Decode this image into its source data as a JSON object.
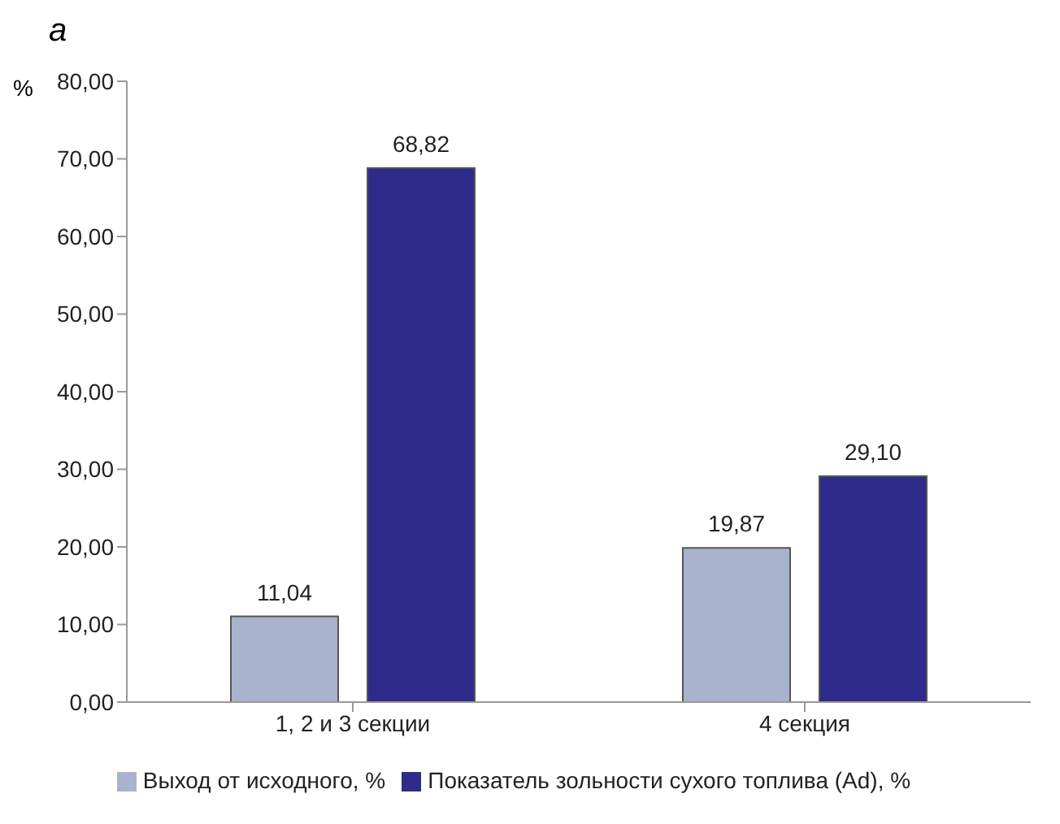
{
  "chart_data": {
    "type": "bar",
    "title": "а",
    "ylabel": "%",
    "categories": [
      "1, 2 и 3  секции",
      "4 секция"
    ],
    "series": [
      {
        "name": "Выход от исходного, %",
        "color": "#a9b3cd",
        "values": [
          11.04,
          19.87
        ],
        "value_labels": [
          "11,04",
          "19,87"
        ]
      },
      {
        "name": "Показатель зольности сухого топлива (Ad), %",
        "color": "#2e2b8a",
        "values": [
          68.82,
          29.1
        ],
        "value_labels": [
          "68,82",
          "29,10"
        ]
      }
    ],
    "ylim": [
      0,
      80
    ],
    "yticks": [
      {
        "value": 0,
        "label": "0,00"
      },
      {
        "value": 10,
        "label": "10,00"
      },
      {
        "value": 20,
        "label": "20,00"
      },
      {
        "value": 30,
        "label": "30,00"
      },
      {
        "value": 40,
        "label": "40,00"
      },
      {
        "value": 50,
        "label": "50,00"
      },
      {
        "value": 60,
        "label": "60,00"
      },
      {
        "value": 70,
        "label": "70,00"
      },
      {
        "value": 80,
        "label": "80,00"
      }
    ],
    "grid": false,
    "legend": "bottom"
  }
}
